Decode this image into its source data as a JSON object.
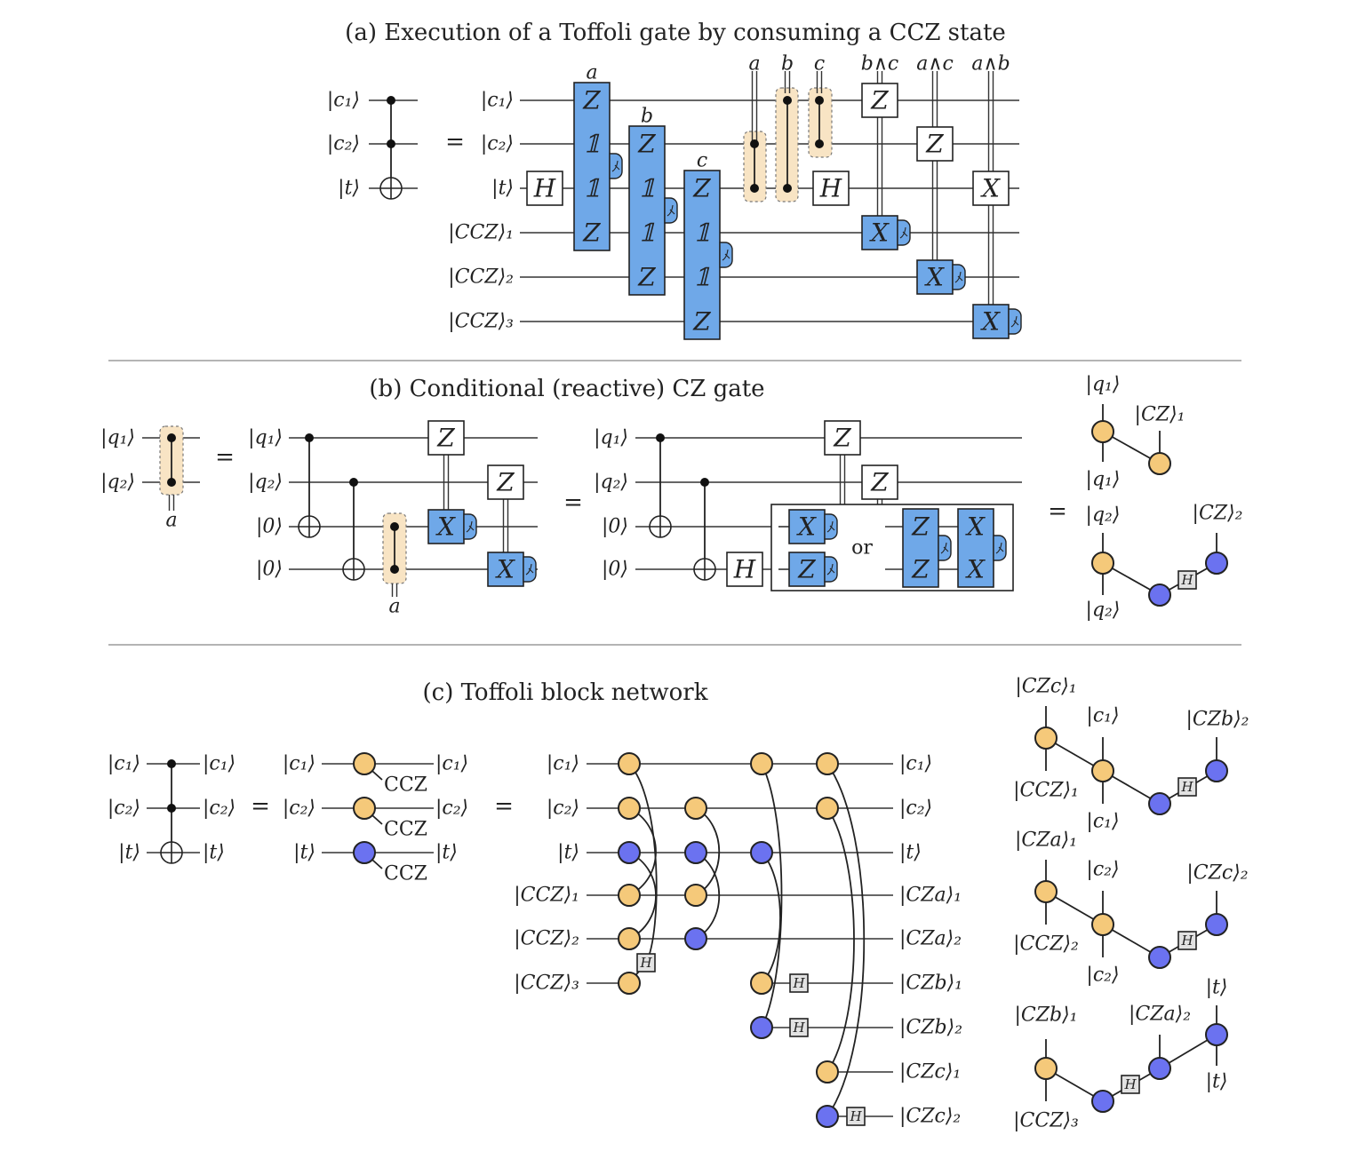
{
  "colors": {
    "gate_blue": "#6fa8e8",
    "node_orange": "#f5c97a",
    "node_blue": "#6b72f0",
    "measured_cz_bg": "#f8e4c4",
    "h_box_gray": "#e2e2e2"
  },
  "gate_symbols": {
    "Z": "Z",
    "I": "𝟙",
    "H": "H",
    "X": "X"
  },
  "equals": "=",
  "panel_a": {
    "title": "(a) Execution of a Toffoli gate by consuming a CCZ state",
    "toffoli_labels": [
      "|c₁⟩",
      "|c₂⟩",
      "|t⟩"
    ],
    "circuit_labels": [
      "|c₁⟩",
      "|c₂⟩",
      "|t⟩",
      "|CCZ⟩₁",
      "|CCZ⟩₂",
      "|CCZ⟩₃"
    ],
    "measurement_labels": [
      "a",
      "b",
      "c"
    ],
    "condition_labels": [
      "a",
      "b",
      "c",
      "b∧c",
      "a∧c",
      "a∧b"
    ]
  },
  "panel_b": {
    "title": "(b) Conditional (reactive) CZ gate",
    "cz_labels": [
      "|q₁⟩",
      "|q₂⟩"
    ],
    "cz_condition": "a",
    "circuit1_labels": [
      "|q₁⟩",
      "|q₂⟩",
      "|0⟩",
      "|0⟩"
    ],
    "circuit1_condition": "a",
    "circuit2_labels": [
      "|q₁⟩",
      "|q₂⟩",
      "|0⟩",
      "|0⟩"
    ],
    "or": "or",
    "graph_labels": [
      "|q₁⟩",
      "|CZ⟩₁",
      "|q₁⟩",
      "|q₂⟩",
      "|CZ⟩₂",
      "|q₂⟩"
    ]
  },
  "panel_c": {
    "title": "(c) Toffoli block network",
    "toffoli_in": [
      "|c₁⟩",
      "|c₂⟩",
      "|t⟩"
    ],
    "toffoli_out": [
      "|c₁⟩",
      "|c₂⟩",
      "|t⟩"
    ],
    "block_in": [
      "|c₁⟩",
      "|c₂⟩",
      "|t⟩"
    ],
    "block_tag": "CCZ",
    "block_out": [
      "|c₁⟩",
      "|c₂⟩",
      "|t⟩"
    ],
    "network_in": [
      "|c₁⟩",
      "|c₂⟩",
      "|t⟩",
      "|CCZ⟩₁",
      "|CCZ⟩₂",
      "|CCZ⟩₃"
    ],
    "network_out": [
      "|c₁⟩",
      "|c₂⟩",
      "|t⟩",
      "|CZa⟩₁",
      "|CZa⟩₂",
      "|CZb⟩₁",
      "|CZb⟩₂",
      "|CZc⟩₁",
      "|CZc⟩₂"
    ],
    "graphs": [
      {
        "labels": [
          "|CZc⟩₁",
          "|CCZ⟩₁",
          "|c₁⟩",
          "|c₁⟩",
          "|CZb⟩₂"
        ]
      },
      {
        "labels": [
          "|CZa⟩₁",
          "|CCZ⟩₂",
          "|c₂⟩",
          "|c₂⟩",
          "|CZc⟩₂"
        ]
      },
      {
        "labels": [
          "|CZb⟩₁",
          "|CCZ⟩₃",
          "|CZa⟩₂",
          "|t⟩",
          "|t⟩"
        ]
      }
    ]
  }
}
